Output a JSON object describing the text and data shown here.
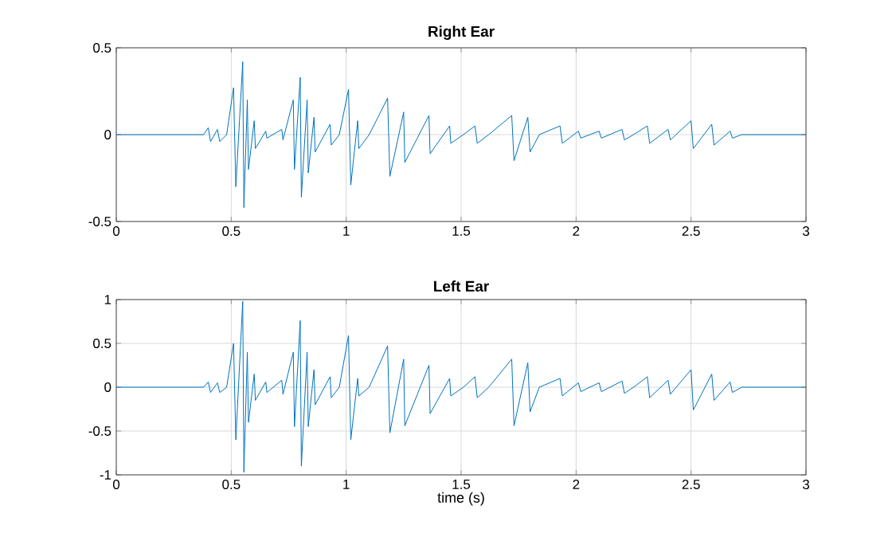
{
  "chart_data": [
    {
      "type": "line",
      "title": "Right Ear",
      "xlim": [
        0,
        3
      ],
      "xticks": [
        0,
        0.5,
        1,
        1.5,
        2,
        2.5,
        3
      ],
      "ylim": [
        -0.5,
        0.5
      ],
      "yticks": [
        -0.5,
        0,
        0.5
      ],
      "grid": true,
      "series": [
        {
          "color": "#0072bd",
          "x": [
            0,
            0.38,
            0.4,
            0.41,
            0.44,
            0.45,
            0.48,
            0.51,
            0.52,
            0.55,
            0.555,
            0.57,
            0.575,
            0.6,
            0.605,
            0.65,
            0.655,
            0.72,
            0.725,
            0.77,
            0.775,
            0.8,
            0.805,
            0.83,
            0.835,
            0.86,
            0.865,
            0.93,
            0.935,
            0.97,
            1.01,
            1.02,
            1.05,
            1.055,
            1.1,
            1.18,
            1.19,
            1.25,
            1.255,
            1.36,
            1.365,
            1.45,
            1.455,
            1.51,
            1.56,
            1.57,
            1.62,
            1.72,
            1.73,
            1.79,
            1.8,
            1.84,
            1.93,
            1.94,
            2.01,
            2.02,
            2.1,
            2.11,
            2.2,
            2.21,
            2.25,
            2.31,
            2.32,
            2.4,
            2.41,
            2.5,
            2.51,
            2.59,
            2.6,
            2.67,
            2.68,
            2.72,
            3
          ],
          "values": [
            0,
            0,
            0.04,
            -0.04,
            0.03,
            -0.04,
            0,
            0.27,
            -0.3,
            0.42,
            -0.42,
            0.2,
            -0.2,
            0.08,
            -0.08,
            0.02,
            -0.02,
            0.03,
            -0.03,
            0.2,
            -0.2,
            0.33,
            -0.36,
            0.2,
            -0.22,
            0.1,
            -0.1,
            0.06,
            -0.06,
            0,
            0.26,
            -0.29,
            0.08,
            -0.08,
            0,
            0.21,
            -0.24,
            0.13,
            -0.16,
            0.11,
            -0.11,
            0.05,
            -0.05,
            0,
            0.05,
            -0.05,
            0,
            0.11,
            -0.15,
            0.1,
            -0.1,
            0,
            0.05,
            -0.05,
            0.02,
            -0.02,
            0.02,
            -0.02,
            0.03,
            -0.03,
            0,
            0.05,
            -0.05,
            0.03,
            -0.03,
            0.08,
            -0.08,
            0.06,
            -0.06,
            0.02,
            -0.02,
            0,
            0
          ]
        }
      ]
    },
    {
      "type": "line",
      "title": "Left Ear",
      "xlabel": "time (s)",
      "xlim": [
        0,
        3
      ],
      "xticks": [
        0,
        0.5,
        1,
        1.5,
        2,
        2.5,
        3
      ],
      "ylim": [
        -1,
        1
      ],
      "yticks": [
        -1,
        -0.5,
        0,
        0.5,
        1
      ],
      "grid": true,
      "series": [
        {
          "color": "#0072bd",
          "x": [
            0,
            0.38,
            0.4,
            0.41,
            0.44,
            0.45,
            0.48,
            0.51,
            0.52,
            0.55,
            0.555,
            0.57,
            0.575,
            0.6,
            0.605,
            0.65,
            0.655,
            0.72,
            0.725,
            0.77,
            0.775,
            0.8,
            0.805,
            0.83,
            0.835,
            0.86,
            0.865,
            0.93,
            0.935,
            0.97,
            1.01,
            1.02,
            1.05,
            1.055,
            1.1,
            1.18,
            1.19,
            1.25,
            1.255,
            1.36,
            1.365,
            1.45,
            1.455,
            1.51,
            1.56,
            1.57,
            1.62,
            1.72,
            1.73,
            1.79,
            1.8,
            1.84,
            1.93,
            1.94,
            2.01,
            2.02,
            2.1,
            2.11,
            2.2,
            2.21,
            2.25,
            2.31,
            2.32,
            2.4,
            2.41,
            2.5,
            2.51,
            2.59,
            2.6,
            2.67,
            2.68,
            2.72,
            3
          ],
          "values": [
            0,
            0,
            0.06,
            -0.06,
            0.05,
            -0.06,
            0,
            0.5,
            -0.6,
            0.98,
            -0.97,
            0.4,
            -0.4,
            0.15,
            -0.15,
            0.06,
            -0.06,
            0.08,
            -0.08,
            0.4,
            -0.45,
            0.76,
            -0.9,
            0.4,
            -0.45,
            0.2,
            -0.2,
            0.12,
            -0.12,
            0,
            0.59,
            -0.6,
            0.1,
            -0.1,
            0,
            0.47,
            -0.52,
            0.32,
            -0.44,
            0.25,
            -0.3,
            0.1,
            -0.1,
            0,
            0.12,
            -0.12,
            0,
            0.32,
            -0.44,
            0.28,
            -0.28,
            0,
            0.1,
            -0.1,
            0.05,
            -0.05,
            0.05,
            -0.05,
            0.07,
            -0.07,
            0,
            0.12,
            -0.12,
            0.08,
            -0.08,
            0.2,
            -0.26,
            0.15,
            -0.15,
            0.06,
            -0.06,
            0,
            0
          ]
        }
      ]
    }
  ]
}
